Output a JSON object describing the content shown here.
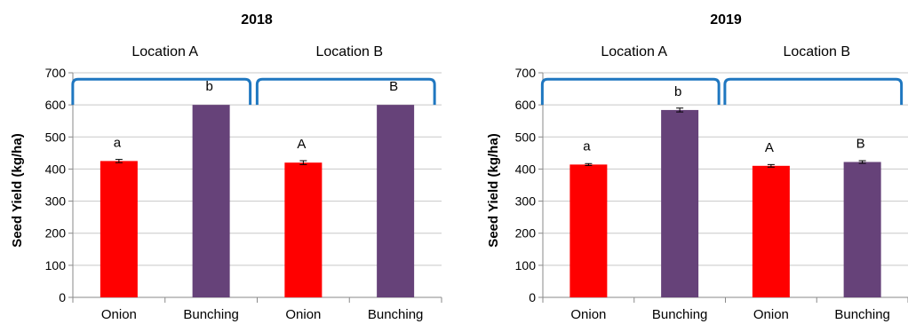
{
  "chart_data": [
    {
      "type": "bar",
      "title": "2018",
      "ylabel": "Seed Yield (kg/ha)",
      "xlabel": "",
      "ylim": [
        0,
        700
      ],
      "yticks": [
        0,
        100,
        200,
        300,
        400,
        500,
        600,
        700
      ],
      "grid": true,
      "groups": [
        "Location A",
        "Location B"
      ],
      "categories": [
        "Onion",
        "Bunching",
        "Onion",
        "Bunching"
      ],
      "values": [
        425,
        600,
        420,
        600
      ],
      "errors": [
        5,
        0,
        6,
        0
      ],
      "letters": [
        "a",
        "b",
        "A",
        "B"
      ],
      "colors": [
        "#ff0000",
        "#664279",
        "#ff0000",
        "#664279"
      ]
    },
    {
      "type": "bar",
      "title": "2019",
      "ylabel": "Seed Yield (kg/ha)",
      "xlabel": "",
      "ylim": [
        0,
        700
      ],
      "yticks": [
        0,
        100,
        200,
        300,
        400,
        500,
        600,
        700
      ],
      "grid": true,
      "groups": [
        "Location A",
        "Location B"
      ],
      "categories": [
        "Onion",
        "Bunching",
        "Onion",
        "Bunching"
      ],
      "values": [
        414,
        584,
        410,
        422
      ],
      "errors": [
        3,
        6,
        4,
        4
      ],
      "letters": [
        "a",
        "b",
        "A",
        "B"
      ],
      "colors": [
        "#ff0000",
        "#664279",
        "#ff0000",
        "#664279"
      ]
    }
  ],
  "style": {
    "bracket_color": "#1f77c0",
    "grid_color": "#c8c8c8",
    "axis_color": "#8a8a8a",
    "text_color": "#000000"
  }
}
